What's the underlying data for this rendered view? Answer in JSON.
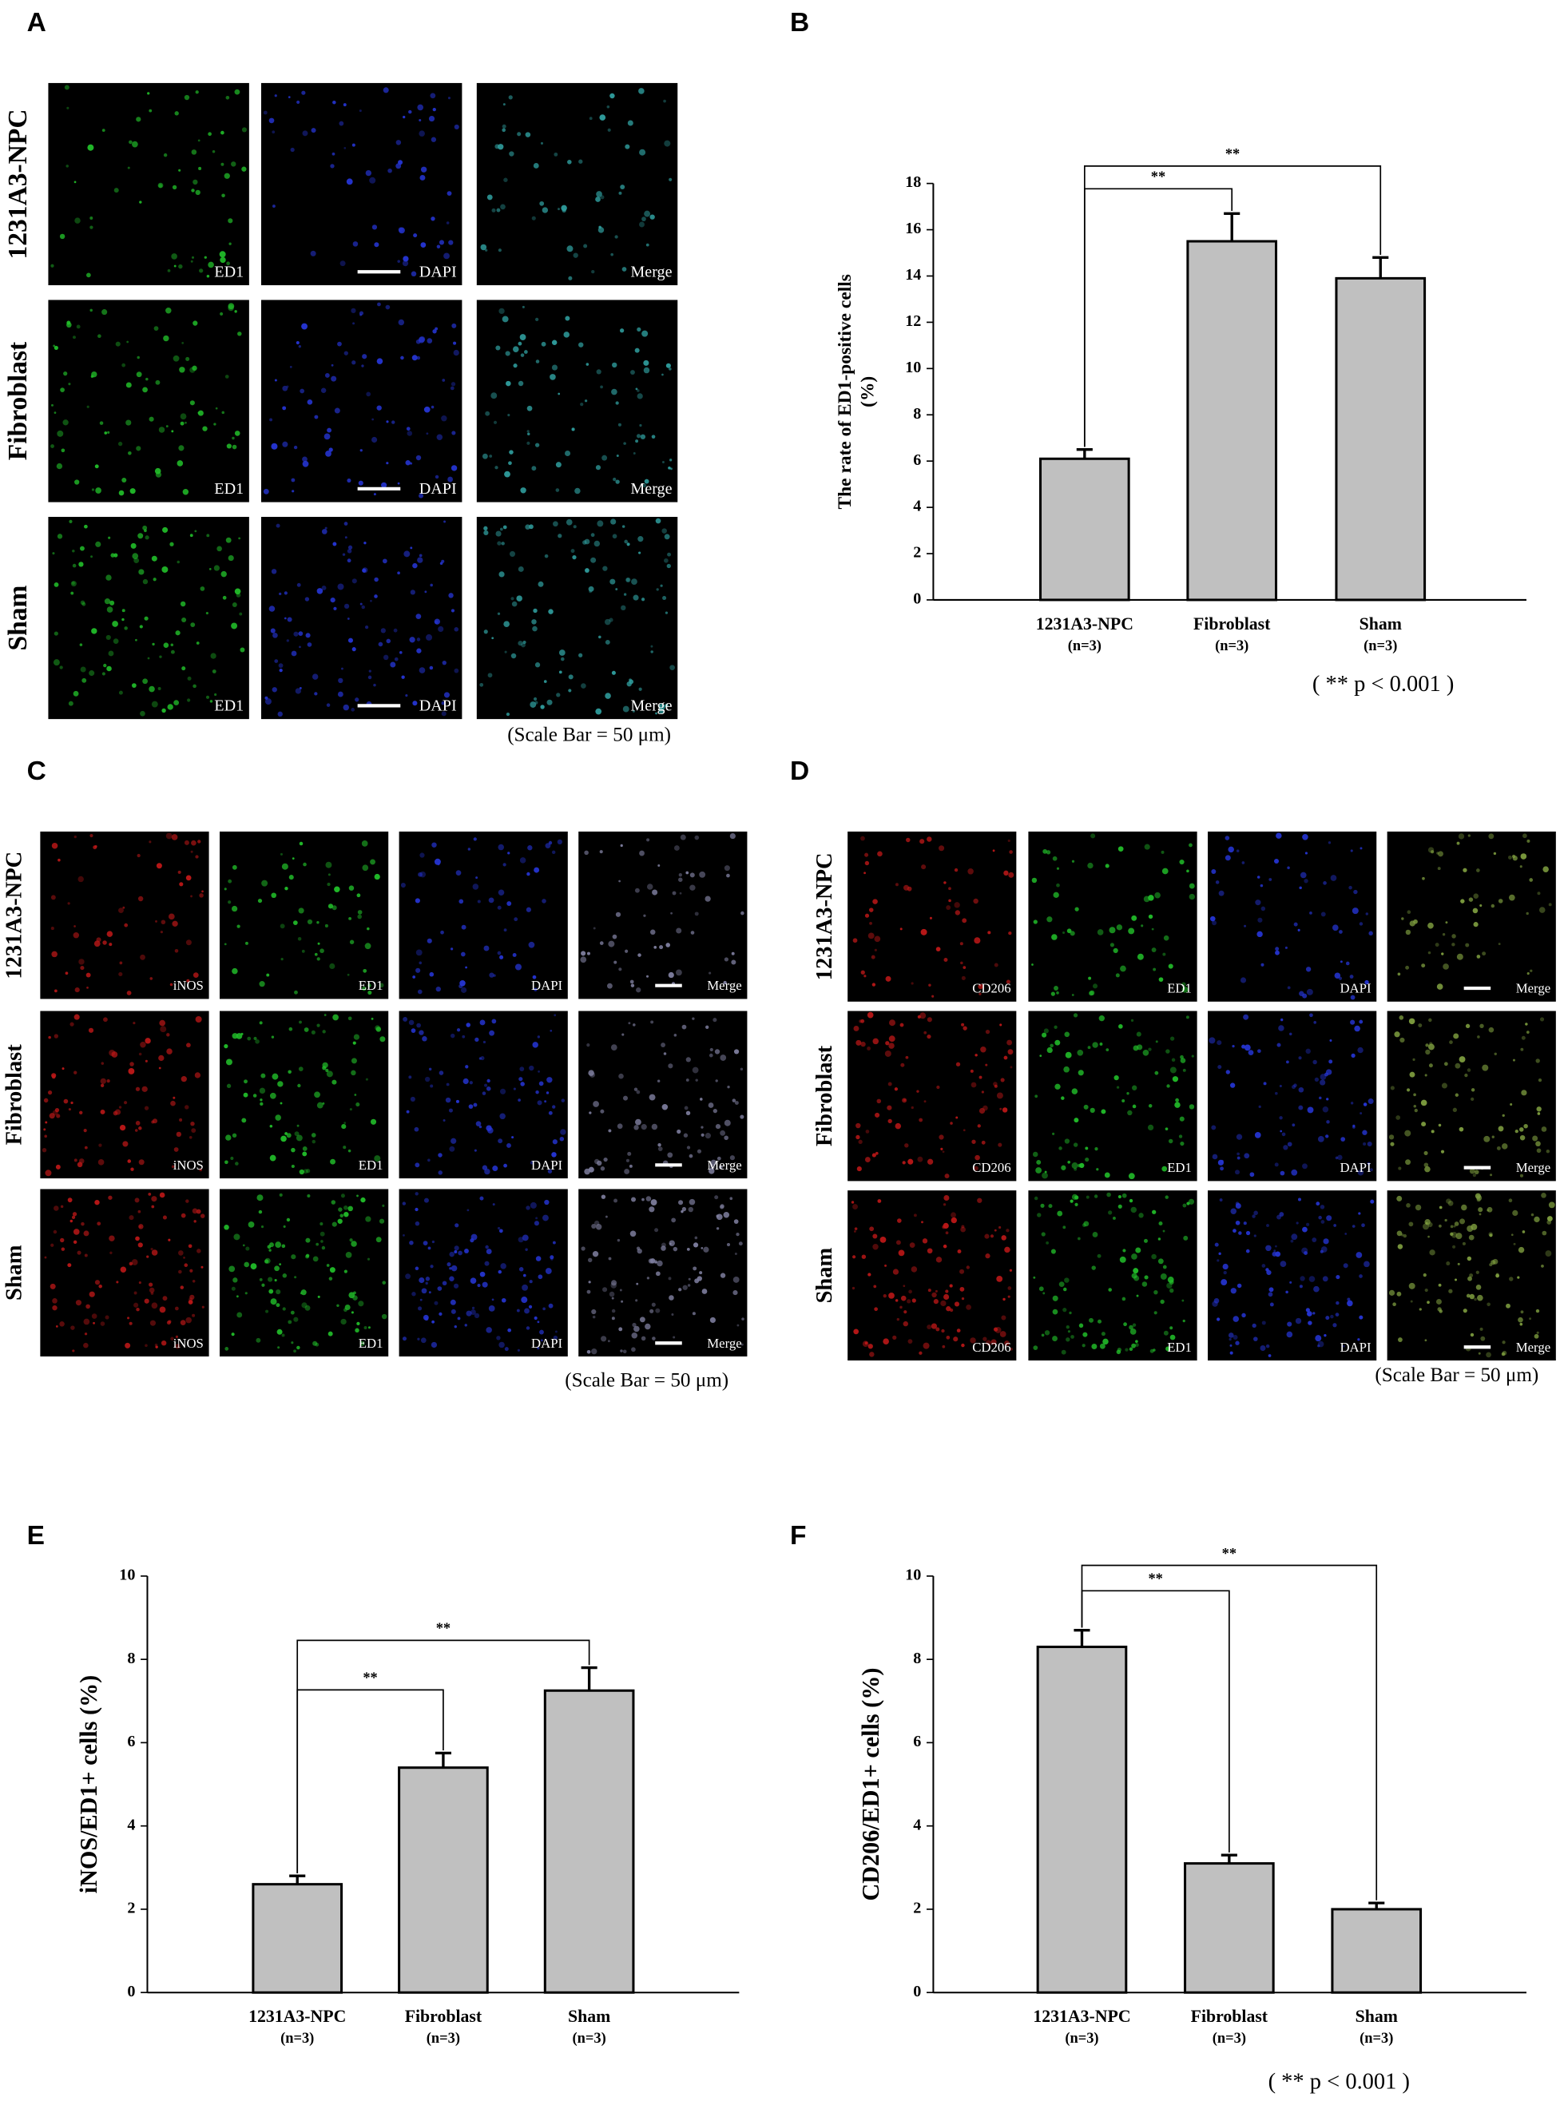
{
  "panels": [
    {
      "letter": "A",
      "rows": [
        "1231A3-NPC",
        "Fibroblast",
        "Sham"
      ],
      "channels": [
        "ED1",
        "DAPI",
        "Merge"
      ],
      "colors": [
        "#22c02a",
        "#2636d8",
        "#30a0a0"
      ],
      "scale_note": "(Scale Bar = 50 μm)"
    },
    {
      "letter": "C",
      "rows": [
        "1231A3-NPC",
        "Fibroblast",
        "Sham"
      ],
      "channels": [
        "iNOS",
        "ED1",
        "DAPI",
        "Merge"
      ],
      "colors": [
        "#c01818",
        "#22c02a",
        "#2636d8",
        "#8080a0"
      ],
      "scale_note": "(Scale Bar = 50 μm)"
    },
    {
      "letter": "D",
      "rows": [
        "1231A3-NPC",
        "Fibroblast",
        "Sham"
      ],
      "channels": [
        "CD206",
        "ED1",
        "DAPI",
        "Merge"
      ],
      "colors": [
        "#c01818",
        "#22c02a",
        "#2636d8",
        "#80a040"
      ],
      "scale_note": "(Scale Bar = 50 μm)"
    }
  ],
  "chart_data": [
    {
      "type": "bar",
      "panel_label": "B",
      "ylabel": "The rate of ED1-positive cells",
      "ylabel_unit": "(%)",
      "categories": [
        "1231A3-NPC",
        "Fibroblast",
        "Sham"
      ],
      "category_notes": [
        "(n=3)",
        "(n=3)",
        "(n=3)"
      ],
      "values": [
        6.1,
        15.5,
        13.9
      ],
      "errors": [
        0.4,
        1.2,
        0.9
      ],
      "color": "#c0c0c0",
      "ylim": [
        0,
        18
      ],
      "yticks": [
        0,
        2,
        4,
        6,
        8,
        10,
        12,
        14,
        16,
        18
      ],
      "brackets": [
        {
          "from": 0,
          "to": 1,
          "label": "**"
        },
        {
          "from": 0,
          "to": 2,
          "label": "**"
        }
      ],
      "note": "( ** p < 0.001 )"
    },
    {
      "type": "bar",
      "panel_label": "E",
      "ylabel": "iNOS/ED1+ cells (%)",
      "categories": [
        "1231A3-NPC",
        "Fibroblast",
        "Sham"
      ],
      "category_notes": [
        "(n=3)",
        "(n=3)",
        "(n=3)"
      ],
      "values": [
        2.6,
        5.4,
        7.25
      ],
      "errors": [
        0.2,
        0.35,
        0.55
      ],
      "color": "#c0c0c0",
      "ylim": [
        0,
        10
      ],
      "yticks": [
        0,
        2,
        4,
        6,
        8,
        10
      ],
      "brackets": [
        {
          "from": 0,
          "to": 1,
          "label": "**"
        },
        {
          "from": 0,
          "to": 2,
          "label": "**"
        }
      ]
    },
    {
      "type": "bar",
      "panel_label": "F",
      "ylabel": "CD206/ED1+ cells (%)",
      "categories": [
        "1231A3-NPC",
        "Fibroblast",
        "Sham"
      ],
      "category_notes": [
        "(n=3)",
        "(n=3)",
        "(n=3)"
      ],
      "values": [
        8.3,
        3.1,
        2.0
      ],
      "errors": [
        0.4,
        0.2,
        0.15
      ],
      "color": "#c0c0c0",
      "ylim": [
        0,
        10
      ],
      "yticks": [
        0,
        2,
        4,
        6,
        8,
        10
      ],
      "brackets": [
        {
          "from": 0,
          "to": 1,
          "label": "**"
        },
        {
          "from": 0,
          "to": 2,
          "label": "**"
        }
      ],
      "note": "( ** p < 0.001 )"
    }
  ]
}
